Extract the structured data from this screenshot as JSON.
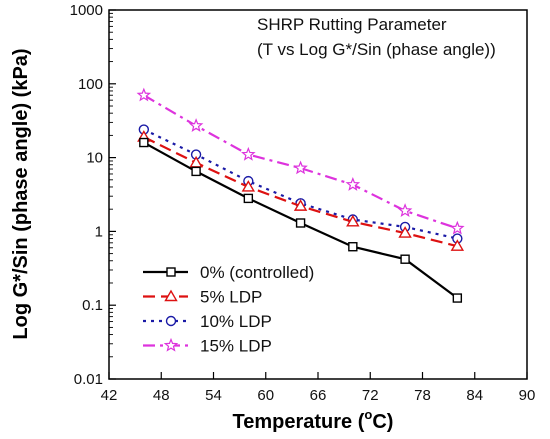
{
  "chart_data": {
    "type": "line",
    "title": "",
    "annotation": [
      "SHRP Rutting Parameter",
      "(T vs Log G*/Sin (phase angle))"
    ],
    "xlabel": "Temperature (°C)",
    "xlabel_main": "Temperature (",
    "xlabel_sup": "o",
    "xlabel_tail": "C)",
    "ylabel": "Log G*/Sin (phase angle) (kPa)",
    "xlim": [
      42,
      90
    ],
    "ylim": [
      0.01,
      1000
    ],
    "yscale": "log",
    "x_ticks": [
      "42",
      "48",
      "54",
      "60",
      "66",
      "72",
      "78",
      "84",
      "90"
    ],
    "y_ticks": [
      "0.01",
      "0.1",
      "1",
      "10",
      "100",
      "1000"
    ],
    "grid": false,
    "legend_position": "bottom-left",
    "series": [
      {
        "name": "0% (controlled)",
        "color": "#000000",
        "dash": "solid",
        "marker": "square",
        "x": [
          46,
          52,
          58,
          64,
          70,
          76,
          82
        ],
        "y": [
          16,
          6.5,
          2.8,
          1.3,
          0.62,
          0.42,
          0.125
        ]
      },
      {
        "name": "5% LDP",
        "color": "#dd1111",
        "dash": "dashed",
        "marker": "triangle",
        "x": [
          46,
          52,
          58,
          64,
          70,
          76,
          82
        ],
        "y": [
          19,
          8.5,
          4.0,
          2.2,
          1.35,
          0.95,
          0.63
        ]
      },
      {
        "name": "10% LDP",
        "color": "#1a1aa6",
        "dash": "dotted",
        "marker": "circle",
        "x": [
          46,
          52,
          58,
          64,
          70,
          76,
          82
        ],
        "y": [
          24,
          11,
          4.8,
          2.4,
          1.45,
          1.15,
          0.8
        ]
      },
      {
        "name": "15% LDP",
        "color": "#dd33dd",
        "dash": "dashdot",
        "marker": "star",
        "x": [
          46,
          52,
          58,
          64,
          70,
          76,
          82
        ],
        "y": [
          70,
          27,
          11,
          7.2,
          4.3,
          1.9,
          1.1
        ]
      }
    ]
  }
}
